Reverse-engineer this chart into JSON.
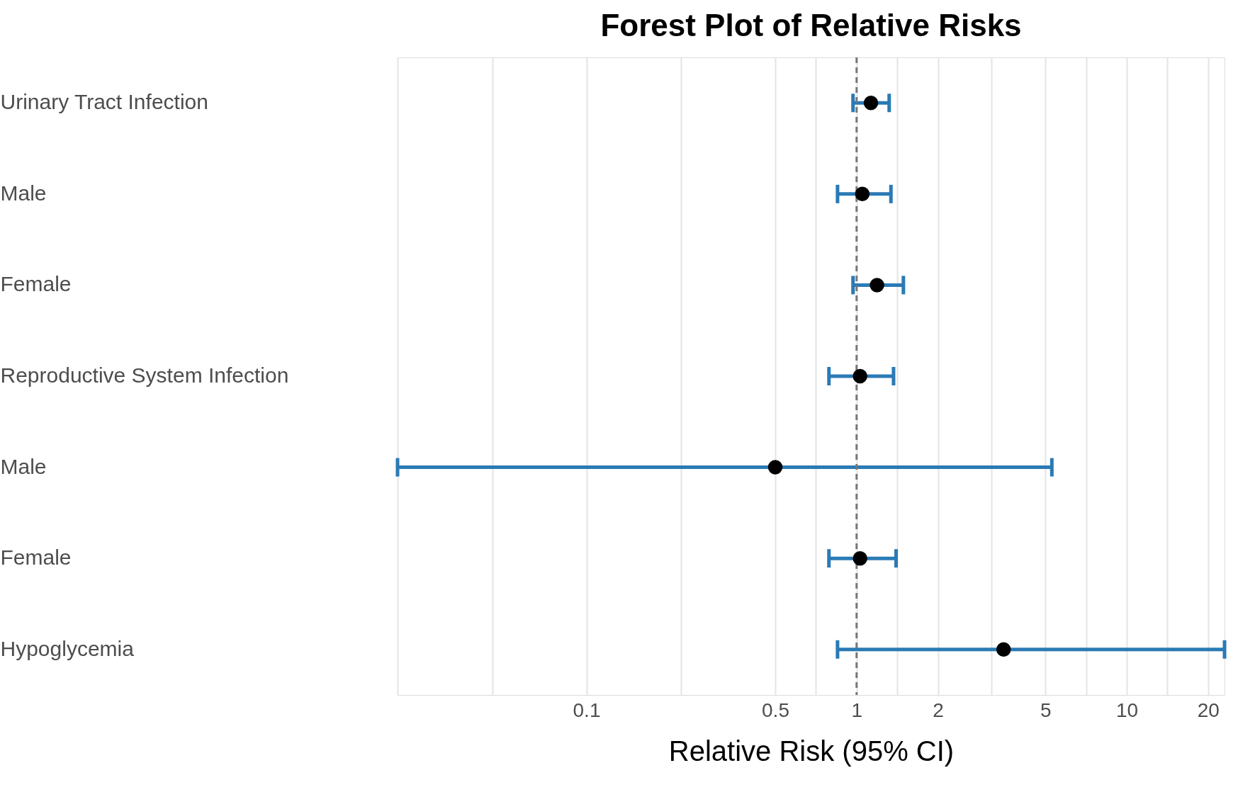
{
  "chart_data": {
    "type": "scatter",
    "title": "Forest Plot of Relative Risks",
    "xlabel": "Relative Risk (95% CI)",
    "categories": [
      "Urinary Tract Infection",
      "Male",
      "Female",
      "Reproductive System Infection",
      "Male",
      "Female",
      "Hypoglycemia"
    ],
    "series": [
      {
        "color": "#2a7ab5",
        "colors": [
          "#000000",
          "#000000",
          "#000000",
          "#000000",
          "#000000",
          "#000000",
          "#000000"
        ],
        "values": [
          1.13,
          1.05,
          1.19,
          1.03,
          0.5,
          1.03,
          3.5
        ],
        "errors": [
          [
            0.97,
            1.32
          ],
          [
            0.85,
            1.34
          ],
          [
            0.97,
            1.49
          ],
          [
            0.79,
            1.37
          ],
          [
            0.02,
            5.28
          ],
          [
            0.79,
            1.4
          ],
          [
            0.85,
            23
          ]
        ]
      }
    ],
    "orientation": "horizontal",
    "log": "x",
    "xlim": [
      0.02,
      23
    ],
    "xticks": [
      {
        "value": 0.02,
        "label": null
      },
      {
        "value": 0.045,
        "label": null
      },
      0.1,
      {
        "value": 0.224,
        "label": null
      },
      0.5,
      {
        "value": 0.707,
        "label": null
      },
      1,
      {
        "value": 1.414,
        "label": null
      },
      2,
      {
        "value": 3.16,
        "label": null
      },
      5,
      {
        "value": 7.07,
        "label": null
      },
      10,
      {
        "value": 14.1,
        "label": null
      },
      20
    ],
    "ref_lines": [
      {
        "axis": "x",
        "value": 1,
        "color": "#777777",
        "line_style": "dashed"
      }
    ],
    "grid": "x",
    "marker": "circle"
  }
}
